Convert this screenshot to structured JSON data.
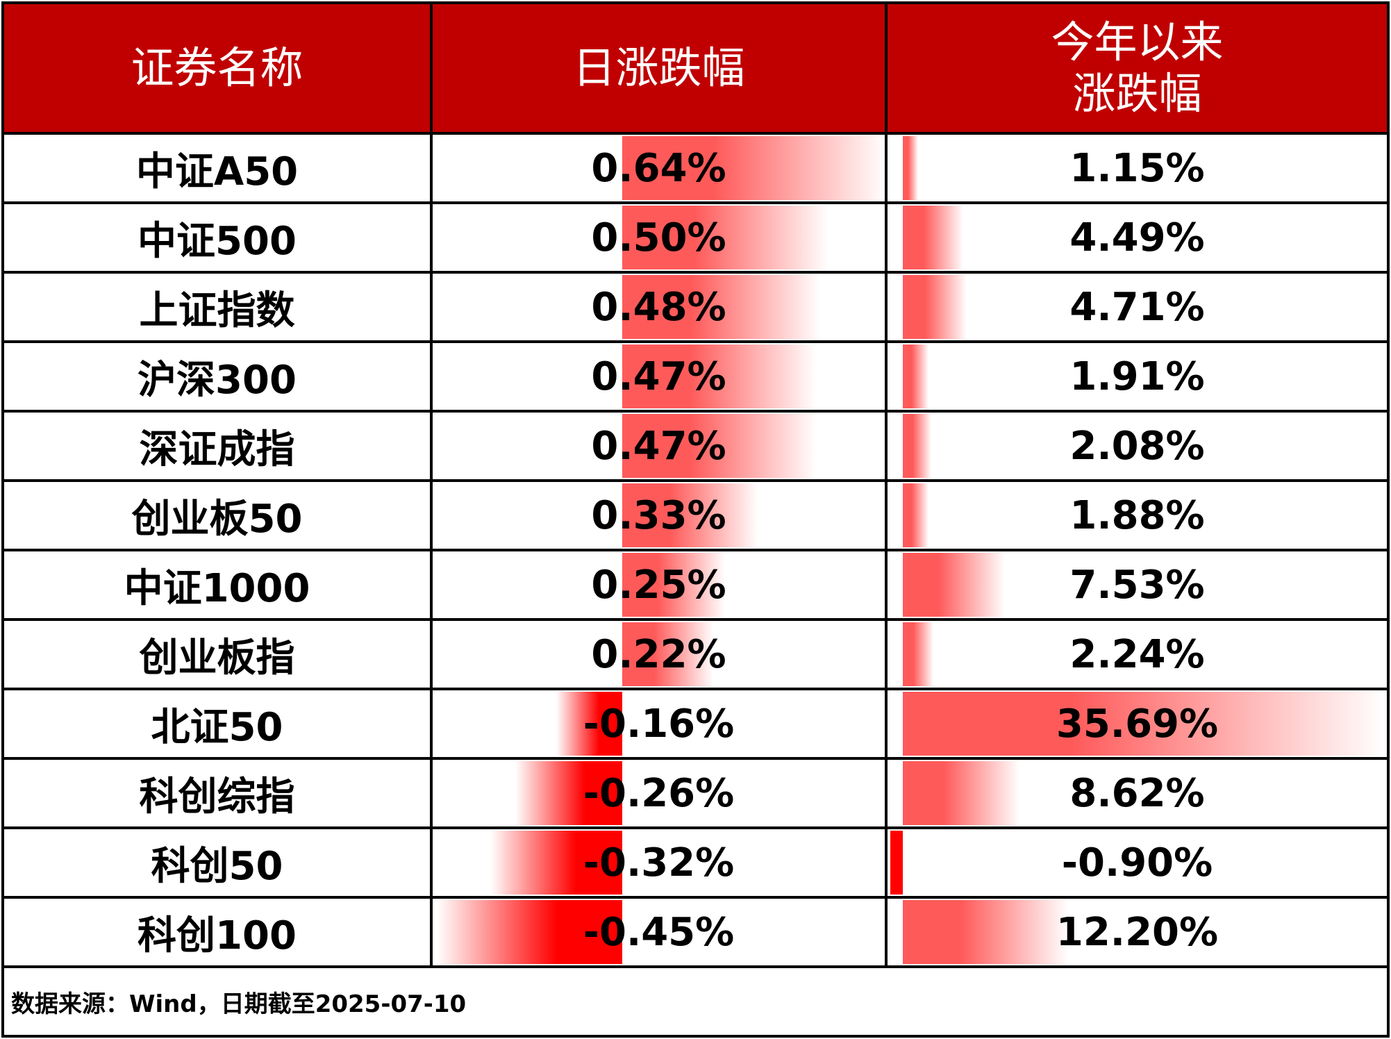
{
  "chart_data": {
    "type": "table",
    "columns": [
      "证券名称",
      "日涨跌幅",
      "今年以来涨跌幅"
    ],
    "header_lines": [
      [
        "证券名称"
      ],
      [
        "日涨跌幅"
      ],
      [
        "今年以来",
        "涨跌幅"
      ]
    ],
    "rows": [
      {
        "name": "中证A50",
        "daily": "0.64%",
        "daily_value": 0.64,
        "ytd": "1.15%",
        "ytd_value": 1.15
      },
      {
        "name": "中证500",
        "daily": "0.50%",
        "daily_value": 0.5,
        "ytd": "4.49%",
        "ytd_value": 4.49
      },
      {
        "name": "上证指数",
        "daily": "0.48%",
        "daily_value": 0.48,
        "ytd": "4.71%",
        "ytd_value": 4.71
      },
      {
        "name": "沪深300",
        "daily": "0.47%",
        "daily_value": 0.47,
        "ytd": "1.91%",
        "ytd_value": 1.91
      },
      {
        "name": "深证成指",
        "daily": "0.47%",
        "daily_value": 0.47,
        "ytd": "2.08%",
        "ytd_value": 2.08
      },
      {
        "name": "创业板50",
        "daily": "0.33%",
        "daily_value": 0.33,
        "ytd": "1.88%",
        "ytd_value": 1.88
      },
      {
        "name": "中证1000",
        "daily": "0.25%",
        "daily_value": 0.25,
        "ytd": "7.53%",
        "ytd_value": 7.53
      },
      {
        "name": "创业板指",
        "daily": "0.22%",
        "daily_value": 0.22,
        "ytd": "2.24%",
        "ytd_value": 2.24
      },
      {
        "name": "北证50",
        "daily": "-0.16%",
        "daily_value": -0.16,
        "ytd": "35.69%",
        "ytd_value": 35.69
      },
      {
        "name": "科创综指",
        "daily": "-0.26%",
        "daily_value": -0.26,
        "ytd": "8.62%",
        "ytd_value": 8.62
      },
      {
        "name": "科创50",
        "daily": "-0.32%",
        "daily_value": -0.32,
        "ytd": "-0.90%",
        "ytd_value": -0.9
      },
      {
        "name": "科创100",
        "daily": "-0.45%",
        "daily_value": -0.45,
        "ytd": "12.20%",
        "ytd_value": 12.2
      }
    ],
    "source_note": "数据来源：Wind，日期截至2025-07-10"
  },
  "colors": {
    "header_bg": "#c00000",
    "header_text": "#ffffff",
    "positive_bar": "#ff5a5a",
    "negative_bar": "#ff0000",
    "border": "#000000"
  }
}
